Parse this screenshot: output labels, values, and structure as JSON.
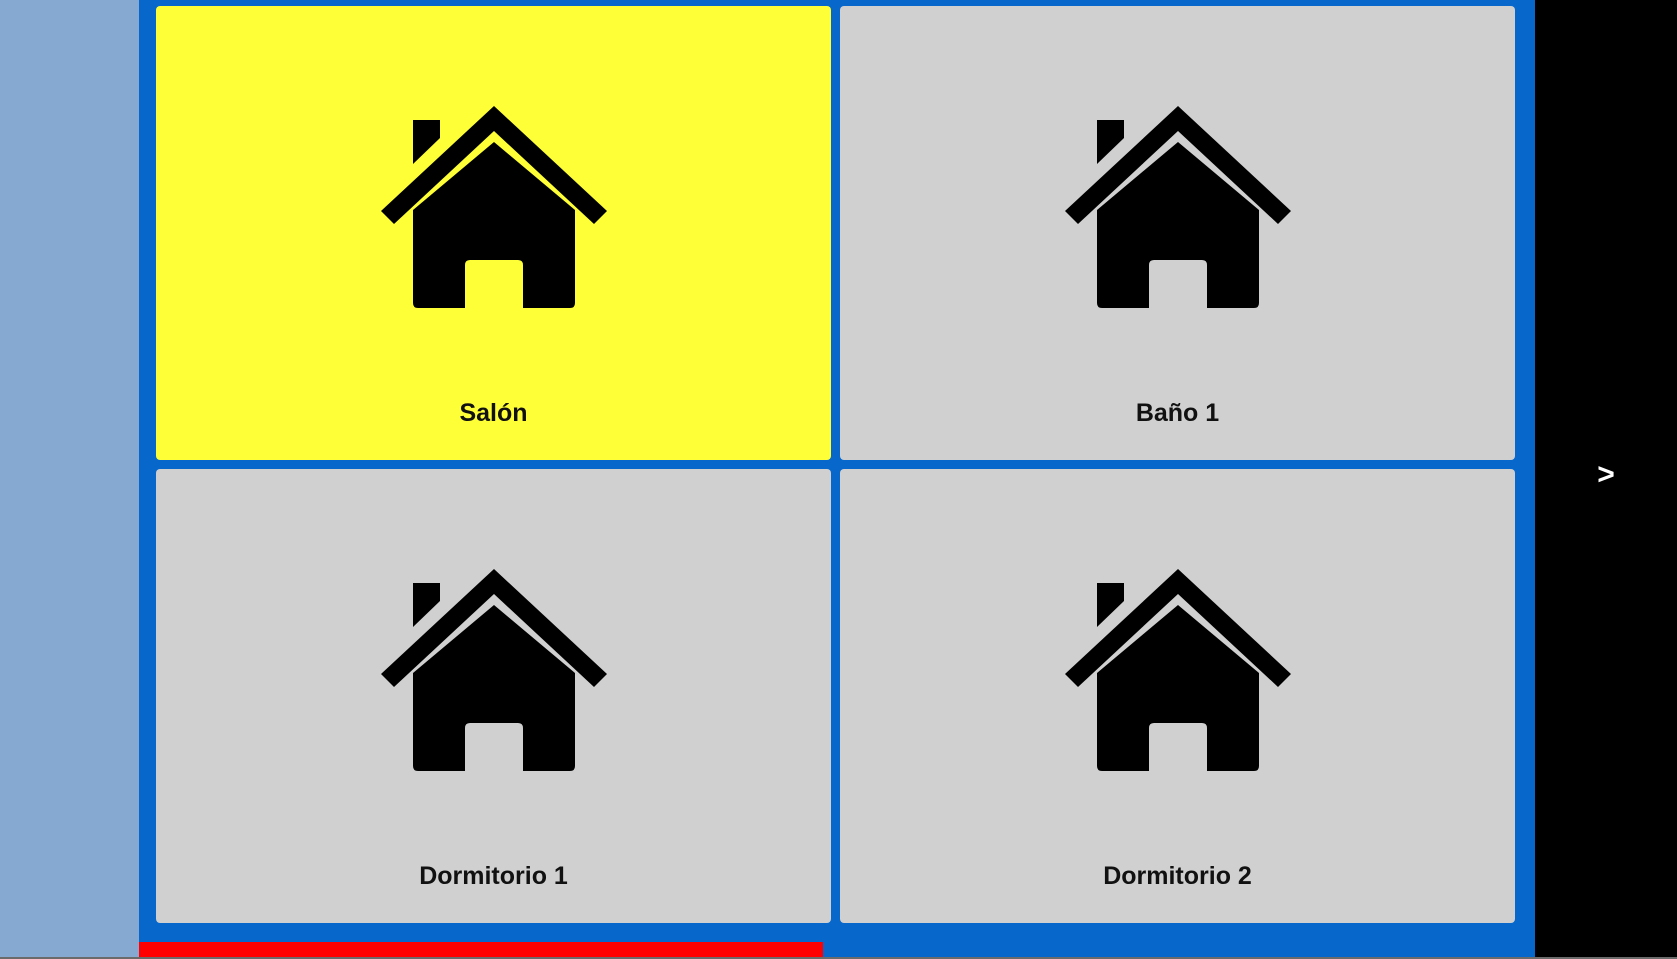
{
  "tiles": [
    {
      "label": "Salón",
      "icon": "house-icon",
      "selected": true
    },
    {
      "label": "Baño 1",
      "icon": "house-icon",
      "selected": false
    },
    {
      "label": "Dormitorio 1",
      "icon": "house-icon",
      "selected": false
    },
    {
      "label": "Dormitorio 2",
      "icon": "house-icon",
      "selected": false
    }
  ],
  "nav": {
    "next_label": ">"
  },
  "progress": {
    "fraction": 0.49
  },
  "colors": {
    "left_panel": "#86a9d1",
    "main_background": "#0767cb",
    "tile_default": "#d0d0d0",
    "tile_selected": "#ffff37",
    "progress": "#ff0000",
    "next_panel": "#000000"
  }
}
